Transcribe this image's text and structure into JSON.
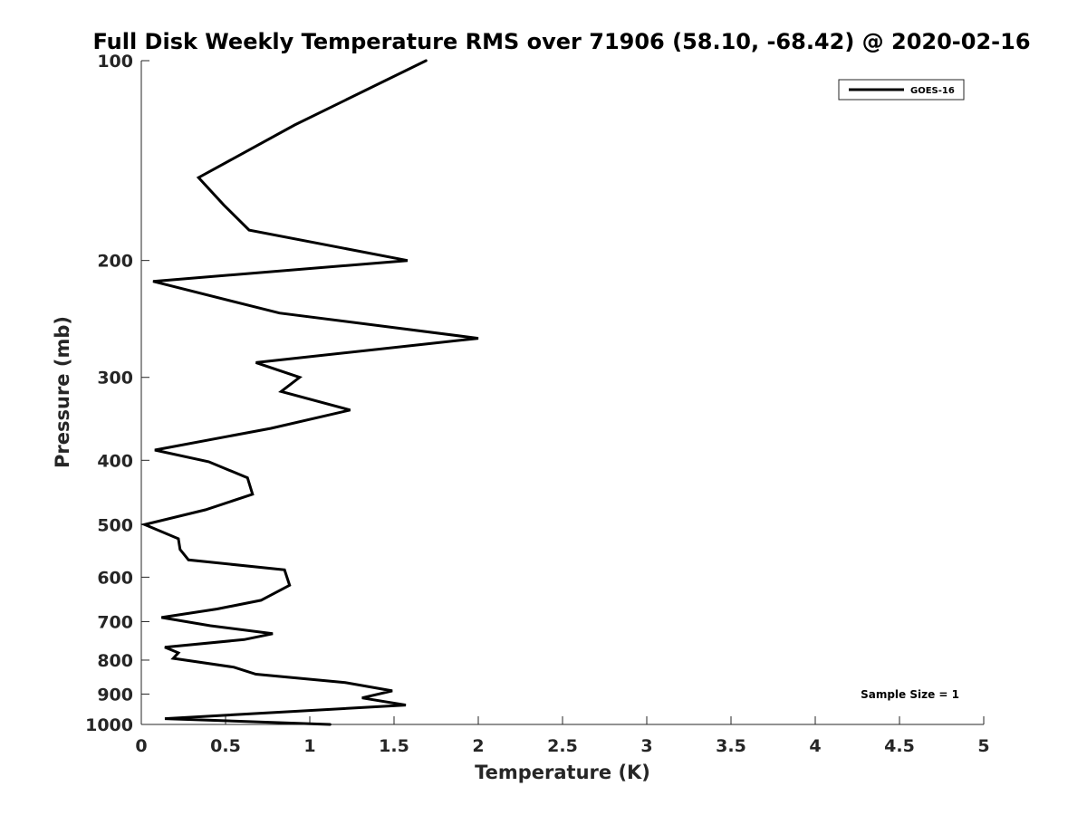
{
  "chart_data": {
    "type": "line",
    "title": "Full Disk Weekly Temperature RMS over 71906 (58.10, -68.42) @ 2020-02-16",
    "xlabel": "Temperature (K)",
    "ylabel": "Pressure (mb)",
    "xlim": [
      0,
      5
    ],
    "ylim": [
      100,
      1000
    ],
    "y_scale": "log",
    "y_direction": "reversed",
    "x_ticks": [
      "0",
      "0.5",
      "1",
      "1.5",
      "2",
      "2.5",
      "3",
      "3.5",
      "4",
      "4.5",
      "5"
    ],
    "x_tick_values": [
      0,
      0.5,
      1,
      1.5,
      2,
      2.5,
      3,
      3.5,
      4,
      4.5,
      5
    ],
    "y_ticks": [
      "100",
      "200",
      "300",
      "400",
      "500",
      "600",
      "700",
      "800",
      "900",
      "1000"
    ],
    "y_tick_values": [
      100,
      200,
      300,
      400,
      500,
      600,
      700,
      800,
      900,
      1000
    ],
    "grid": false,
    "legend_position": "top-right",
    "annotation": "Sample Size = 1",
    "series": [
      {
        "name": "GOES-16",
        "color": "#000000",
        "points": [
          [
            1.69,
            100
          ],
          [
            0.91,
            125
          ],
          [
            0.34,
            150
          ],
          [
            0.49,
            165
          ],
          [
            0.64,
            180
          ],
          [
            1.58,
            200
          ],
          [
            0.07,
            215
          ],
          [
            0.82,
            240
          ],
          [
            2.0,
            262
          ],
          [
            0.68,
            285
          ],
          [
            0.94,
            300
          ],
          [
            0.83,
            315
          ],
          [
            1.24,
            336
          ],
          [
            0.77,
            358
          ],
          [
            0.08,
            386
          ],
          [
            0.4,
            402
          ],
          [
            0.63,
            425
          ],
          [
            0.66,
            450
          ],
          [
            0.38,
            475
          ],
          [
            0.02,
            500
          ],
          [
            0.22,
            525
          ],
          [
            0.23,
            545
          ],
          [
            0.28,
            565
          ],
          [
            0.85,
            585
          ],
          [
            0.88,
            617
          ],
          [
            0.71,
            650
          ],
          [
            0.45,
            670
          ],
          [
            0.12,
            690
          ],
          [
            0.41,
            710
          ],
          [
            0.78,
            730
          ],
          [
            0.61,
            745
          ],
          [
            0.14,
            765
          ],
          [
            0.22,
            780
          ],
          [
            0.19,
            795
          ],
          [
            0.55,
            820
          ],
          [
            0.68,
            840
          ],
          [
            1.21,
            865
          ],
          [
            1.49,
            890
          ],
          [
            1.31,
            912
          ],
          [
            1.57,
            935
          ],
          [
            0.14,
            980
          ],
          [
            1.12,
            1000
          ]
        ]
      }
    ]
  }
}
